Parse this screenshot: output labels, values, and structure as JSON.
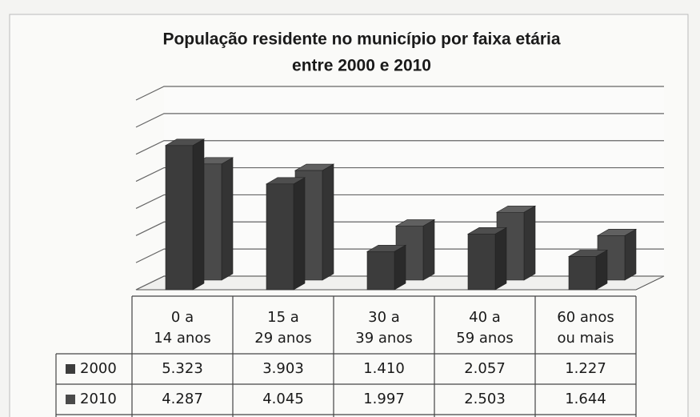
{
  "chart_data": {
    "type": "bar3d",
    "title": "População residente no município por faixa etária entre 2000 e 2010",
    "categories": [
      "0 a 14 anos",
      "15 a 29 anos",
      "30 a 39 anos",
      "40 a 59 anos",
      "60 anos ou mais"
    ],
    "series": [
      {
        "name": "2000",
        "color": "#3c3c3c",
        "values": [
          5323,
          3903,
          1410,
          2057,
          1227
        ],
        "value_labels": [
          "5.323",
          "3.903",
          "1.410",
          "2.057",
          "1.227"
        ]
      },
      {
        "name": "2010",
        "color": "#4a4a4a",
        "values": [
          4287,
          4045,
          1997,
          2503,
          1644
        ],
        "value_labels": [
          "4.287",
          "4.045",
          "1.997",
          "2.503",
          "1.644"
        ]
      }
    ],
    "ylim": [
      0,
      7000
    ],
    "yticks": [
      0,
      1000,
      2000,
      3000,
      4000,
      5000,
      6000,
      7000
    ],
    "grid": true
  }
}
